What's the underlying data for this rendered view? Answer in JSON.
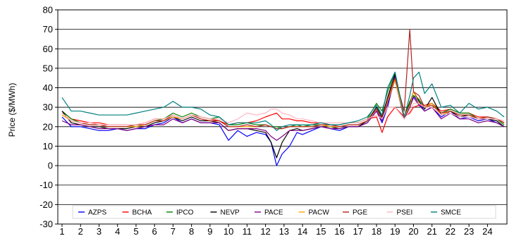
{
  "chart_data": {
    "type": "line",
    "ylabel": "Price ($/MWh)",
    "xlabel": "",
    "ylim": [
      -30,
      80
    ],
    "yticks": [
      -30,
      -20,
      -10,
      0,
      10,
      20,
      30,
      40,
      50,
      60,
      70,
      80
    ],
    "xlim": [
      1,
      24.9
    ],
    "xticks": [
      1,
      2,
      3,
      4,
      5,
      6,
      7,
      8,
      9,
      10,
      11,
      12,
      13,
      14,
      15,
      16,
      17,
      18,
      19,
      20,
      21,
      22,
      23,
      24
    ],
    "grid": "horizontal",
    "legend_position": "bottom",
    "series": [
      {
        "name": "AZPS",
        "color": "#0000ff",
        "x": [
          1,
          1.5,
          2,
          2.5,
          3,
          3.5,
          4,
          4.5,
          5,
          5.5,
          6,
          6.5,
          7,
          7.5,
          8,
          8.5,
          9,
          9.5,
          10,
          10.5,
          11,
          11.5,
          12,
          12.3,
          12.6,
          12.9,
          13.3,
          13.7,
          14,
          14.5,
          15,
          15.5,
          16,
          16.5,
          17,
          17.5,
          18,
          18.3,
          18.6,
          19,
          19.5,
          19.8,
          20,
          20.3,
          20.6,
          21,
          21.5,
          22,
          22.5,
          23,
          23.5,
          24,
          24.5,
          24.9
        ],
        "y": [
          25,
          20,
          20,
          19,
          18,
          18,
          19,
          18,
          19,
          19,
          21,
          22,
          25,
          22,
          24,
          22,
          22,
          21,
          13,
          18,
          15,
          17,
          16,
          12,
          0,
          6,
          10,
          17,
          16,
          18,
          20,
          19,
          18,
          20,
          20,
          22,
          28,
          22,
          30,
          46,
          25,
          30,
          36,
          32,
          28,
          30,
          25,
          28,
          24,
          25,
          23,
          24,
          22,
          20
        ]
      },
      {
        "name": "BCHA",
        "color": "#ff0000",
        "x": [
          1,
          1.5,
          2,
          2.5,
          3,
          3.5,
          4,
          4.5,
          5,
          5.5,
          6,
          6.5,
          7,
          7.5,
          8,
          8.5,
          9,
          9.5,
          10,
          10.5,
          11,
          11.5,
          12,
          12.3,
          12.6,
          12.9,
          13.3,
          13.7,
          14,
          14.5,
          15,
          15.5,
          16,
          16.5,
          17,
          17.5,
          18,
          18.3,
          18.6,
          19,
          19.5,
          19.8,
          20,
          20.3,
          20.6,
          21,
          21.5,
          22,
          22.5,
          23,
          23.5,
          24,
          24.5,
          24.9
        ],
        "y": [
          28,
          24,
          23,
          22,
          22,
          21,
          21,
          21,
          21,
          22,
          24,
          24,
          26,
          24,
          26,
          25,
          24,
          23,
          21,
          22,
          22,
          23,
          25,
          26,
          27,
          24,
          24,
          23,
          23,
          22,
          22,
          21,
          21,
          22,
          22,
          24,
          25,
          17,
          25,
          30,
          25,
          27,
          30,
          31,
          31,
          32,
          28,
          29,
          27,
          27,
          25,
          25,
          24,
          22
        ]
      },
      {
        "name": "IPCO",
        "color": "#008000",
        "x": [
          1,
          1.5,
          2,
          2.5,
          3,
          3.5,
          4,
          4.5,
          5,
          5.5,
          6,
          6.5,
          7,
          7.5,
          8,
          8.5,
          9,
          9.5,
          10,
          10.5,
          11,
          11.5,
          12,
          12.3,
          12.6,
          12.9,
          13.3,
          13.7,
          14,
          14.5,
          15,
          15.5,
          16,
          16.5,
          17,
          17.5,
          18,
          18.3,
          18.6,
          19,
          19.5,
          19.8,
          20,
          20.3,
          20.6,
          21,
          21.5,
          22,
          22.5,
          23,
          23.5,
          24,
          24.5,
          24.9
        ],
        "y": [
          28,
          24,
          22,
          21,
          21,
          20,
          20,
          20,
          21,
          21,
          23,
          24,
          27,
          25,
          27,
          25,
          24,
          25,
          21,
          21,
          22,
          21,
          21,
          20,
          20,
          19,
          20,
          21,
          20,
          21,
          21,
          21,
          21,
          22,
          22,
          24,
          32,
          28,
          38,
          48,
          25,
          33,
          36,
          34,
          30,
          32,
          27,
          29,
          27,
          27,
          24,
          25,
          24,
          21
        ]
      },
      {
        "name": "NEVP",
        "color": "#000000",
        "x": [
          1,
          1.5,
          2,
          2.5,
          3,
          3.5,
          4,
          4.5,
          5,
          5.5,
          6,
          6.5,
          7,
          7.5,
          8,
          8.5,
          9,
          9.5,
          10,
          10.5,
          11,
          11.5,
          12,
          12.3,
          12.6,
          12.9,
          13.3,
          13.7,
          14,
          14.5,
          15,
          15.5,
          16,
          16.5,
          17,
          17.5,
          18,
          18.3,
          18.6,
          19,
          19.5,
          19.8,
          20,
          20.3,
          20.6,
          21,
          21.5,
          22,
          22.5,
          23,
          23.5,
          24,
          24.5,
          24.9
        ],
        "y": [
          28,
          22,
          21,
          20,
          20,
          19,
          19,
          19,
          20,
          20,
          22,
          23,
          25,
          23,
          25,
          23,
          23,
          22,
          18,
          19,
          19,
          18,
          17,
          12,
          4,
          12,
          18,
          19,
          18,
          19,
          20,
          20,
          19,
          20,
          20,
          23,
          30,
          25,
          35,
          47,
          25,
          32,
          38,
          33,
          29,
          35,
          26,
          28,
          25,
          26,
          24,
          24,
          23,
          20
        ]
      },
      {
        "name": "PACE",
        "color": "#800080",
        "x": [
          1,
          1.5,
          2,
          2.5,
          3,
          3.5,
          4,
          4.5,
          5,
          5.5,
          6,
          6.5,
          7,
          7.5,
          8,
          8.5,
          9,
          9.5,
          10,
          10.5,
          11,
          11.5,
          12,
          12.3,
          12.6,
          12.9,
          13.3,
          13.7,
          14,
          14.5,
          15,
          15.5,
          16,
          16.5,
          17,
          17.5,
          18,
          18.3,
          18.6,
          19,
          19.5,
          19.8,
          20,
          20.3,
          20.6,
          21,
          21.5,
          22,
          22.5,
          23,
          23.5,
          24,
          24.5,
          24.9
        ],
        "y": [
          23,
          21,
          21,
          20,
          19,
          19,
          19,
          18,
          19,
          20,
          21,
          21,
          24,
          22,
          24,
          22,
          22,
          22,
          18,
          19,
          19,
          19,
          18,
          15,
          13,
          15,
          18,
          18,
          18,
          19,
          20,
          19,
          19,
          20,
          20,
          22,
          28,
          23,
          32,
          44,
          24,
          30,
          35,
          31,
          28,
          30,
          24,
          27,
          24,
          24,
          22,
          23,
          22,
          20
        ]
      },
      {
        "name": "PACW",
        "color": "#ffa500",
        "x": [
          1,
          1.5,
          2,
          2.5,
          3,
          3.5,
          4,
          4.5,
          5,
          5.5,
          6,
          6.5,
          7,
          7.5,
          8,
          8.5,
          9,
          9.5,
          10,
          10.5,
          11,
          11.5,
          12,
          12.3,
          12.6,
          12.9,
          13.3,
          13.7,
          14,
          14.5,
          15,
          15.5,
          16,
          16.5,
          17,
          17.5,
          18,
          18.3,
          18.6,
          19,
          19.5,
          19.8,
          20,
          20.3,
          20.6,
          21,
          21.5,
          22,
          22.5,
          23,
          23.5,
          24,
          24.5,
          24.9
        ],
        "y": [
          26,
          23,
          22,
          21,
          21,
          20,
          20,
          20,
          20,
          21,
          23,
          23,
          25,
          24,
          26,
          24,
          23,
          23,
          20,
          20,
          20,
          20,
          21,
          20,
          19,
          19,
          20,
          20,
          20,
          20,
          21,
          20,
          20,
          21,
          21,
          23,
          29,
          24,
          33,
          44,
          25,
          31,
          38,
          32,
          30,
          32,
          26,
          28,
          26,
          26,
          24,
          25,
          24,
          22
        ]
      },
      {
        "name": "PGE",
        "color": "#b22222",
        "x": [
          1,
          1.5,
          2,
          2.5,
          3,
          3.5,
          4,
          4.5,
          5,
          5.5,
          6,
          6.5,
          7,
          7.5,
          8,
          8.5,
          9,
          9.5,
          10,
          10.5,
          11,
          11.5,
          12,
          12.3,
          12.6,
          12.9,
          13.3,
          13.7,
          14,
          14.5,
          15,
          15.5,
          16,
          16.5,
          17,
          17.5,
          18,
          18.3,
          18.6,
          19,
          19.5,
          19.8,
          20,
          20.3,
          20.6,
          21,
          21.5,
          22,
          22.5,
          23,
          23.5,
          24,
          24.5,
          24.9
        ],
        "y": [
          27,
          23,
          22,
          21,
          21,
          20,
          20,
          20,
          21,
          21,
          23,
          23,
          26,
          24,
          26,
          24,
          23,
          23,
          20,
          20,
          21,
          20,
          21,
          20,
          19,
          19,
          20,
          20,
          20,
          20,
          21,
          21,
          20,
          21,
          21,
          23,
          29,
          24,
          34,
          45,
          28,
          70,
          38,
          36,
          30,
          31,
          27,
          28,
          26,
          26,
          24,
          25,
          24,
          22
        ]
      },
      {
        "name": "PSEI",
        "color": "#ffb6c1",
        "x": [
          1,
          1.5,
          2,
          2.5,
          3,
          3.5,
          4,
          4.5,
          5,
          5.5,
          6,
          6.5,
          7,
          7.5,
          8,
          8.5,
          9,
          9.5,
          10,
          10.5,
          11,
          11.5,
          12,
          12.3,
          12.6,
          12.9,
          13.3,
          13.7,
          14,
          14.5,
          15,
          15.5,
          16,
          16.5,
          17,
          17.5,
          18,
          18.3,
          18.6,
          19,
          19.5,
          19.8,
          20,
          20.3,
          20.6,
          21,
          21.5,
          22,
          22.5,
          23,
          23.5,
          24,
          24.5,
          24.9
        ],
        "y": [
          27,
          23,
          22,
          22,
          21,
          21,
          21,
          21,
          21,
          22,
          24,
          24,
          26,
          24,
          26,
          25,
          24,
          24,
          22,
          24,
          27,
          26,
          27,
          29,
          29,
          27,
          26,
          24,
          24,
          23,
          22,
          22,
          22,
          22,
          22,
          24,
          26,
          24,
          30,
          30,
          24,
          28,
          32,
          32,
          30,
          30,
          26,
          27,
          25,
          25,
          24,
          24,
          24,
          23
        ]
      },
      {
        "name": "SMCE",
        "color": "#008080",
        "x": [
          1,
          1.5,
          2,
          2.5,
          3,
          3.5,
          4,
          4.5,
          5,
          5.5,
          6,
          6.5,
          7,
          7.5,
          8,
          8.5,
          9,
          9.5,
          10,
          10.5,
          11,
          11.5,
          12,
          12.3,
          12.6,
          12.9,
          13.3,
          13.7,
          14,
          14.5,
          15,
          15.5,
          16,
          16.5,
          17,
          17.5,
          18,
          18.3,
          18.6,
          19,
          19.5,
          19.8,
          20,
          20.3,
          20.6,
          21,
          21.5,
          22,
          22.5,
          23,
          23.5,
          24,
          24.5,
          24.9
        ],
        "y": [
          35,
          28,
          28,
          27,
          26,
          26,
          26,
          26,
          27,
          28,
          29,
          30,
          33,
          30,
          30,
          29,
          26,
          25,
          21,
          22,
          22,
          22,
          23,
          21,
          18,
          20,
          21,
          21,
          21,
          21,
          22,
          21,
          21,
          22,
          23,
          25,
          31,
          26,
          40,
          48,
          25,
          36,
          45,
          48,
          37,
          42,
          30,
          31,
          27,
          32,
          29,
          30,
          28,
          25
        ]
      }
    ]
  }
}
